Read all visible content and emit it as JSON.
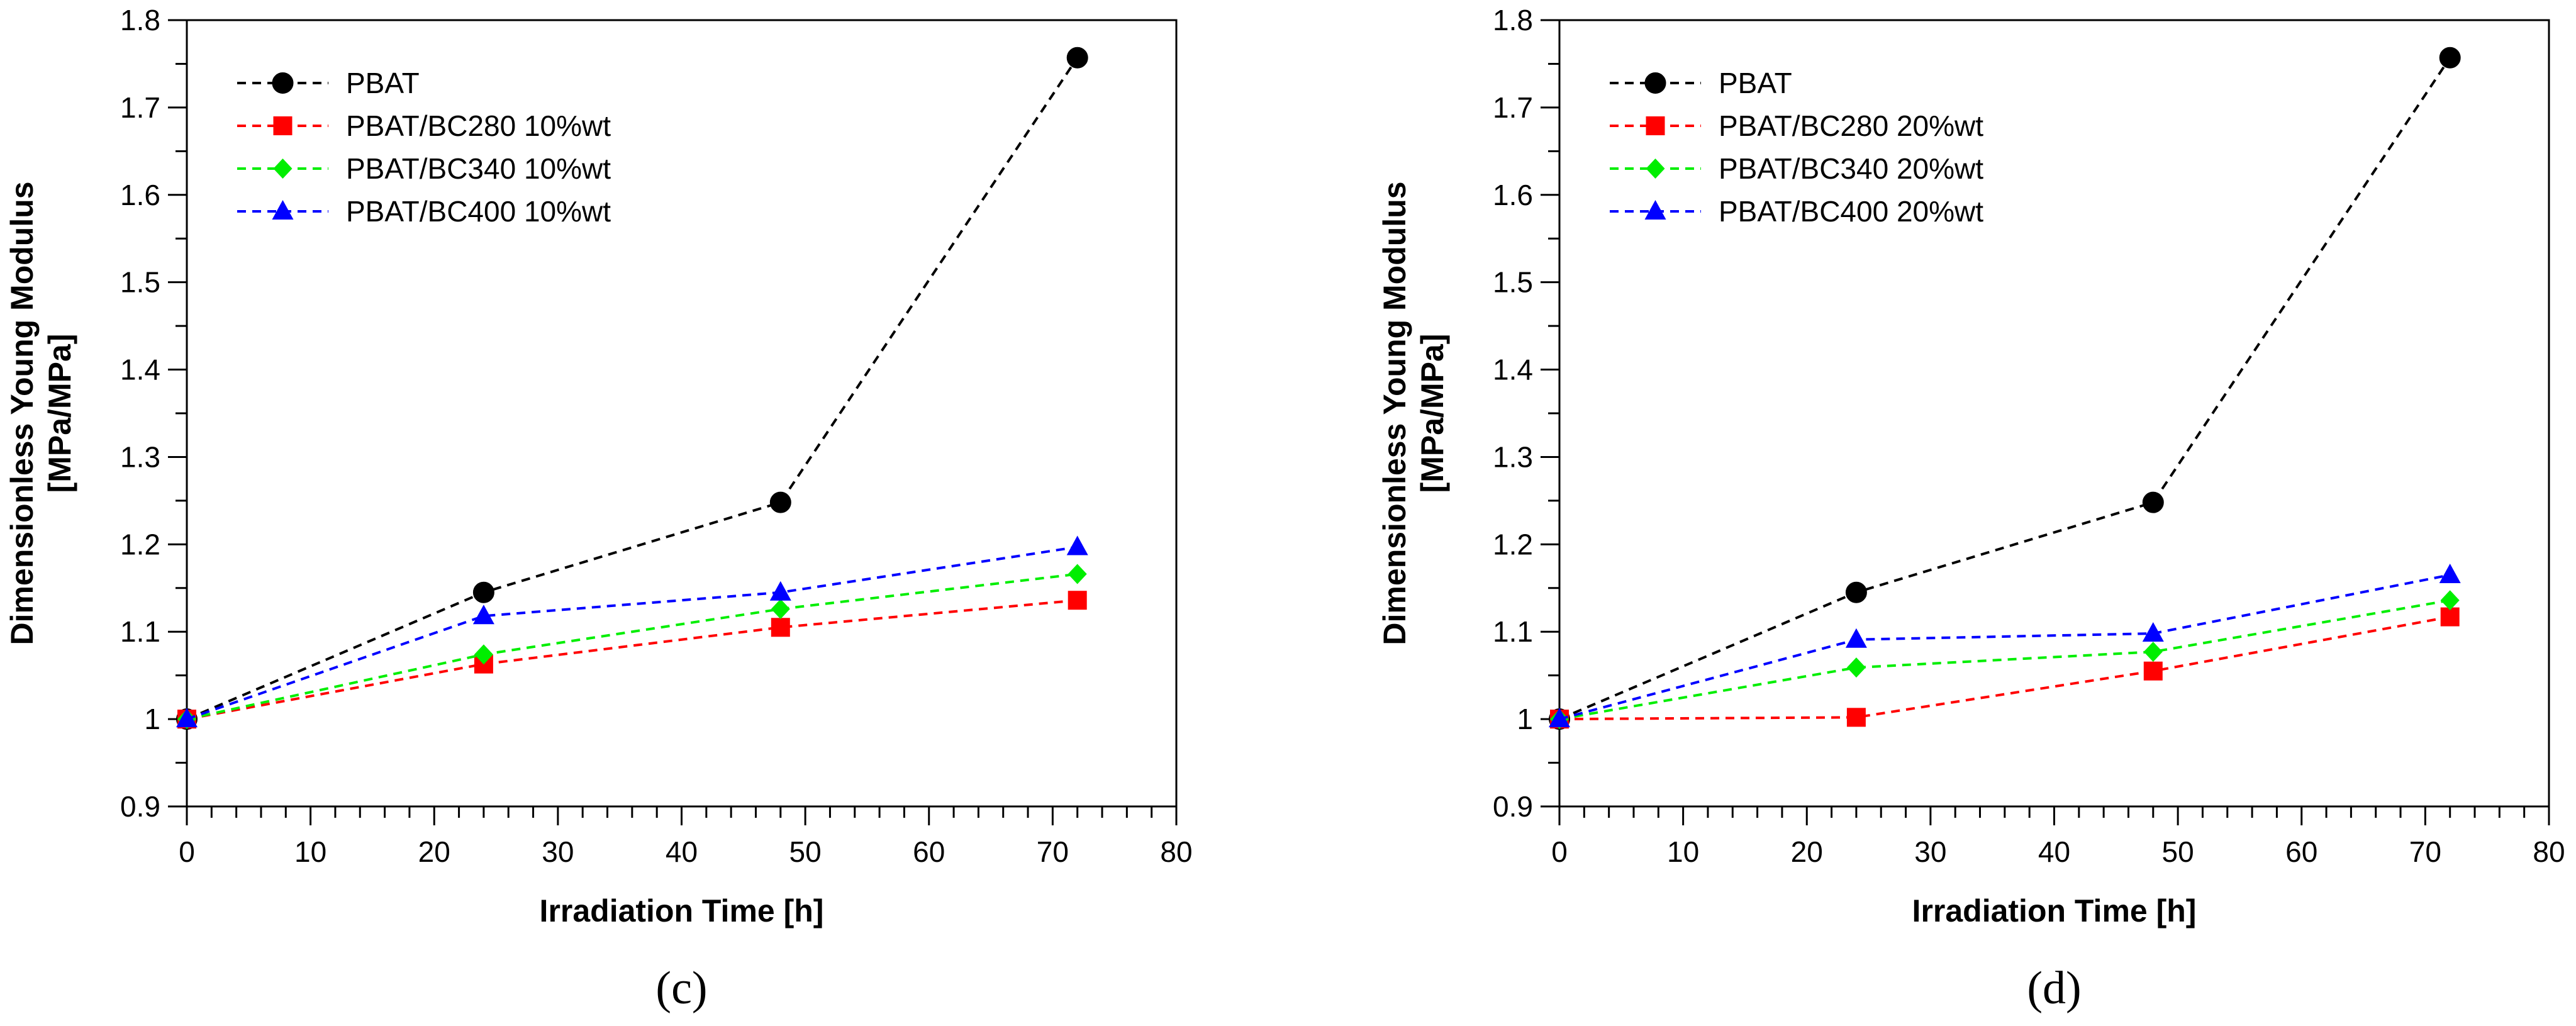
{
  "chart_data": [
    {
      "type": "line",
      "panel_label": "(c)",
      "xlabel": "Irradiation Time [h]",
      "ylabel_line1": "Dimensionless Young Modulus",
      "ylabel_line2": "[MPa/MPa]",
      "xlim": [
        0,
        80
      ],
      "ylim": [
        0.9,
        1.8
      ],
      "x_major_ticks": [
        0,
        10,
        20,
        30,
        40,
        50,
        60,
        70,
        80
      ],
      "x_tick_labels": [
        "0",
        "10",
        "20",
        "30",
        "40",
        "50",
        "60",
        "70",
        "80"
      ],
      "y_major_ticks": [
        0.9,
        1.0,
        1.1,
        1.2,
        1.3,
        1.4,
        1.5,
        1.6,
        1.7,
        1.8
      ],
      "y_tick_labels": [
        "0.9",
        "1",
        "1.1",
        "1.2",
        "1.3",
        "1.4",
        "1.5",
        "1.6",
        "1.7",
        "1.8"
      ],
      "grid": false,
      "legend_position": "top-left",
      "series": [
        {
          "name": "PBAT",
          "color": "#000000",
          "marker": "circle",
          "x": [
            0,
            24,
            48,
            72
          ],
          "y": [
            1.0,
            1.145,
            1.248,
            1.757
          ]
        },
        {
          "name": "PBAT/BC280 10%wt",
          "color": "#ff0000",
          "marker": "square",
          "x": [
            0,
            24,
            48,
            72
          ],
          "y": [
            1.0,
            1.063,
            1.105,
            1.136
          ]
        },
        {
          "name": "PBAT/BC340 10%wt",
          "color": "#00ee00",
          "marker": "diamond",
          "x": [
            0,
            24,
            48,
            72
          ],
          "y": [
            1.0,
            1.074,
            1.126,
            1.166
          ]
        },
        {
          "name": "PBAT/BC400 10%wt",
          "color": "#0000ff",
          "marker": "triangle",
          "x": [
            0,
            24,
            48,
            72
          ],
          "y": [
            1.0,
            1.118,
            1.145,
            1.197
          ]
        }
      ]
    },
    {
      "type": "line",
      "panel_label": "(d)",
      "xlabel": "Irradiation Time [h]",
      "ylabel_line1": "Dimensionless Young Modulus",
      "ylabel_line2": "[MPa/MPa]",
      "xlim": [
        0,
        80
      ],
      "ylim": [
        0.9,
        1.8
      ],
      "x_major_ticks": [
        0,
        10,
        20,
        30,
        40,
        50,
        60,
        70,
        80
      ],
      "x_tick_labels": [
        "0",
        "10",
        "20",
        "30",
        "40",
        "50",
        "60",
        "70",
        "80"
      ],
      "y_major_ticks": [
        0.9,
        1.0,
        1.1,
        1.2,
        1.3,
        1.4,
        1.5,
        1.6,
        1.7,
        1.8
      ],
      "y_tick_labels": [
        "0.9",
        "1",
        "1.1",
        "1.2",
        "1.3",
        "1.4",
        "1.5",
        "1.6",
        "1.7",
        "1.8"
      ],
      "grid": false,
      "legend_position": "top-left",
      "series": [
        {
          "name": "PBAT",
          "color": "#000000",
          "marker": "circle",
          "x": [
            0,
            24,
            48,
            72
          ],
          "y": [
            1.0,
            1.145,
            1.248,
            1.757
          ]
        },
        {
          "name": "PBAT/BC280 20%wt",
          "color": "#ff0000",
          "marker": "square",
          "x": [
            0,
            24,
            48,
            72
          ],
          "y": [
            1.0,
            1.002,
            1.055,
            1.117
          ]
        },
        {
          "name": "PBAT/BC340 20%wt",
          "color": "#00ee00",
          "marker": "diamond",
          "x": [
            0,
            24,
            48,
            72
          ],
          "y": [
            1.0,
            1.059,
            1.077,
            1.136
          ]
        },
        {
          "name": "PBAT/BC400 20%wt",
          "color": "#0000ff",
          "marker": "triangle",
          "x": [
            0,
            24,
            48,
            72
          ],
          "y": [
            1.0,
            1.091,
            1.098,
            1.165
          ]
        }
      ]
    }
  ]
}
